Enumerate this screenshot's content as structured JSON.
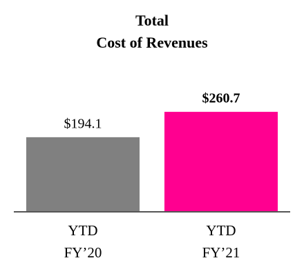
{
  "chart_data": {
    "type": "bar",
    "title": [
      "Total",
      "Cost of Revenues"
    ],
    "categories": [
      [
        "YTD",
        "FY’20"
      ],
      [
        "YTD",
        "FY’21"
      ]
    ],
    "values": [
      194.1,
      260.7
    ],
    "value_labels": [
      "$194.1",
      "$260.7"
    ],
    "value_label_bold": [
      false,
      true
    ],
    "colors": [
      "#808080",
      "#ff0090"
    ]
  }
}
